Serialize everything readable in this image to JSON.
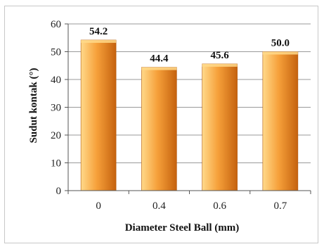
{
  "chart_data": {
    "type": "bar",
    "categories": [
      "0",
      "0.4",
      "0.6",
      "0.7"
    ],
    "values": [
      54.2,
      44.4,
      45.6,
      50.0
    ],
    "value_labels": [
      "54.2",
      "44.4",
      "45.6",
      "50.0"
    ],
    "xlabel": "Diameter Steel Ball (mm)",
    "ylabel": "Sudut kontak (°)",
    "ylim": [
      0,
      60
    ],
    "yticks": [
      0,
      10,
      20,
      30,
      40,
      50,
      60
    ],
    "ytick_labels": [
      "0",
      "10",
      "20",
      "30",
      "40",
      "50",
      "60"
    ],
    "grid": "horizontal",
    "legend": "none",
    "bar_color_light": "#ffd98a",
    "bar_color_mid": "#f6a03a",
    "bar_color_dark": "#c5620e"
  }
}
